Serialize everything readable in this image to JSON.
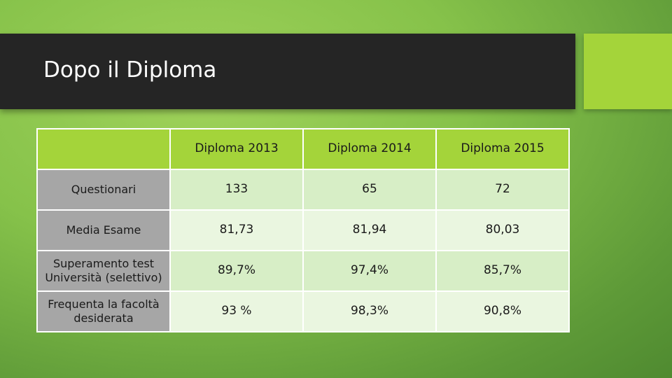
{
  "slide": {
    "title": "Dopo il Diploma"
  },
  "table": {
    "columns": [
      "Diploma 2013",
      "Diploma 2014",
      "Diploma 2015"
    ],
    "rows": [
      {
        "label": "Questionari",
        "values": [
          "133",
          "65",
          "72"
        ]
      },
      {
        "label": "Media Esame",
        "values": [
          "81,73",
          "81,94",
          "80,03"
        ]
      },
      {
        "label": "Superamento test Università (selettivo)",
        "values": [
          "89,7%",
          "97,4%",
          "85,7%"
        ]
      },
      {
        "label": "Frequenta la facoltà desiderata",
        "values": [
          "93 %",
          "98,3%",
          "90,8%"
        ]
      }
    ]
  },
  "colors": {
    "title_band": "#252525",
    "accent": "#a4d43a",
    "label_column": "#a6a6a6",
    "row_light": "#eaf6e0",
    "row_medium": "#d7eec6"
  }
}
